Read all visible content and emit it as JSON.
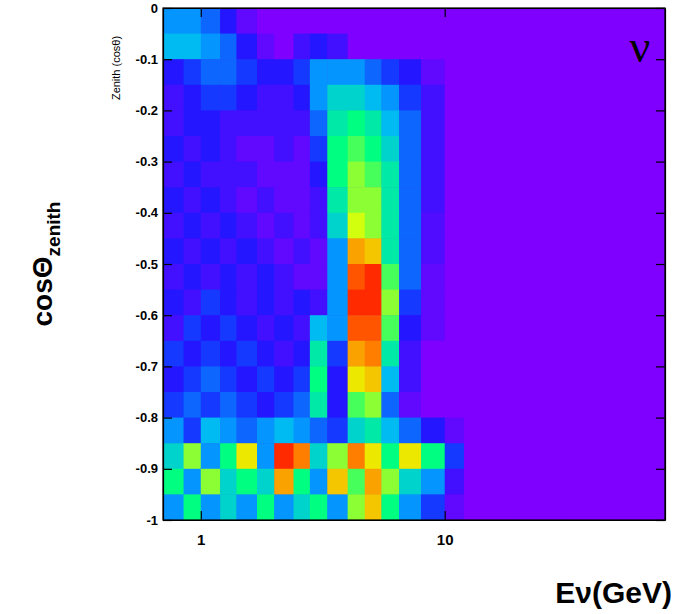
{
  "chart_data": {
    "type": "heatmap",
    "xlabel": "Eν(GeV)",
    "ylabel": {
      "text": "cosΘ",
      "subscript": "zenith"
    },
    "ylabel_inner": "Zenith (cosθ)",
    "annotations": [
      "ν"
    ],
    "log": "x",
    "xlim": [
      0.7,
      80
    ],
    "xticks": [
      1,
      10
    ],
    "ylim": [
      -1,
      0
    ],
    "yticks": [
      0,
      -0.1,
      -0.2,
      -0.3,
      -0.4,
      -0.5,
      -0.6,
      -0.7,
      -0.8,
      -0.9,
      -1
    ],
    "zlim": [
      0,
      1
    ],
    "x_bins": [
      0.7,
      0.85,
      1,
      1.2,
      1.4,
      1.7,
      2,
      2.4,
      2.8,
      3.3,
      4,
      4.7,
      5.5,
      6.5,
      8,
      10,
      12,
      15,
      20,
      30,
      80
    ],
    "y_bins": [
      0,
      -0.05,
      -0.1,
      -0.15,
      -0.2,
      -0.25,
      -0.3,
      -0.35,
      -0.4,
      -0.45,
      -0.5,
      -0.55,
      -0.6,
      -0.65,
      -0.7,
      -0.75,
      -0.8,
      -0.85,
      -0.9,
      -0.95,
      -1
    ],
    "cells": [
      [
        0.3,
        0.3,
        0.25,
        0.15,
        0.05,
        0,
        0,
        0,
        0,
        0,
        0,
        0,
        0,
        0,
        0,
        0,
        0,
        0,
        0,
        0
      ],
      [
        0.35,
        0.35,
        0.3,
        0.25,
        0.15,
        0.05,
        0,
        0.1,
        0.15,
        0.1,
        0,
        0,
        0,
        0,
        0,
        0,
        0,
        0,
        0,
        0
      ],
      [
        0.15,
        0.2,
        0.25,
        0.25,
        0.2,
        0.15,
        0.15,
        0.2,
        0.3,
        0.3,
        0.3,
        0.25,
        0.2,
        0.15,
        0.05,
        0,
        0,
        0,
        0,
        0
      ],
      [
        0.1,
        0.15,
        0.2,
        0.2,
        0.15,
        0.1,
        0.1,
        0.15,
        0.3,
        0.4,
        0.4,
        0.35,
        0.3,
        0.2,
        0.1,
        0,
        0,
        0,
        0,
        0
      ],
      [
        0.1,
        0.15,
        0.15,
        0.1,
        0.1,
        0.1,
        0.1,
        0.1,
        0.25,
        0.45,
        0.5,
        0.45,
        0.35,
        0.25,
        0.1,
        0,
        0,
        0,
        0,
        0
      ],
      [
        0.15,
        0.1,
        0.15,
        0.1,
        0.05,
        0.05,
        0.1,
        0.05,
        0.2,
        0.5,
        0.55,
        0.5,
        0.4,
        0.25,
        0.1,
        0,
        0,
        0,
        0,
        0
      ],
      [
        0.1,
        0.15,
        0.1,
        0.1,
        0.1,
        0.05,
        0.05,
        0.05,
        0.15,
        0.5,
        0.6,
        0.55,
        0.45,
        0.25,
        0.1,
        0,
        0,
        0,
        0,
        0
      ],
      [
        0.15,
        0.1,
        0.15,
        0.1,
        0.05,
        0.1,
        0.05,
        0.05,
        0.1,
        0.45,
        0.6,
        0.6,
        0.45,
        0.25,
        0.1,
        0,
        0,
        0,
        0,
        0
      ],
      [
        0.1,
        0.15,
        0.1,
        0.15,
        0.1,
        0.05,
        0.1,
        0.05,
        0.1,
        0.4,
        0.65,
        0.6,
        0.45,
        0.25,
        0.08,
        0,
        0,
        0,
        0,
        0
      ],
      [
        0.15,
        0.1,
        0.15,
        0.1,
        0.15,
        0.1,
        0.05,
        0.1,
        0.05,
        0.3,
        0.8,
        0.75,
        0.45,
        0.25,
        0.08,
        0,
        0,
        0,
        0,
        0
      ],
      [
        0.1,
        0.15,
        0.1,
        0.15,
        0.1,
        0.15,
        0.1,
        0.05,
        0.05,
        0.3,
        0.9,
        0.95,
        0.55,
        0.25,
        0.05,
        0,
        0,
        0,
        0,
        0
      ],
      [
        0.15,
        0.1,
        0.2,
        0.15,
        0.1,
        0.15,
        0.1,
        0.15,
        0.1,
        0.3,
        0.95,
        0.95,
        0.6,
        0.2,
        0.05,
        0,
        0,
        0,
        0,
        0
      ],
      [
        0.1,
        0.2,
        0.15,
        0.2,
        0.15,
        0.1,
        0.15,
        0.1,
        0.35,
        0.3,
        0.9,
        0.9,
        0.55,
        0.15,
        0.05,
        0,
        0,
        0,
        0,
        0
      ],
      [
        0.2,
        0.15,
        0.2,
        0.15,
        0.2,
        0.15,
        0.1,
        0.15,
        0.45,
        0.2,
        0.8,
        0.85,
        0.45,
        0.1,
        0,
        0,
        0,
        0,
        0,
        0
      ],
      [
        0.15,
        0.2,
        0.25,
        0.2,
        0.15,
        0.2,
        0.15,
        0.2,
        0.5,
        0.15,
        0.7,
        0.75,
        0.35,
        0.1,
        0,
        0,
        0,
        0,
        0,
        0
      ],
      [
        0.2,
        0.25,
        0.2,
        0.25,
        0.2,
        0.15,
        0.2,
        0.25,
        0.45,
        0.15,
        0.55,
        0.6,
        0.25,
        0.05,
        0,
        0,
        0,
        0,
        0,
        0
      ],
      [
        0.3,
        0.2,
        0.35,
        0.3,
        0.25,
        0.3,
        0.35,
        0.3,
        0.25,
        0.2,
        0.4,
        0.45,
        0.35,
        0.25,
        0.15,
        0.05,
        0,
        0,
        0,
        0
      ],
      [
        0.4,
        0.6,
        0.3,
        0.5,
        0.7,
        0.3,
        0.95,
        0.85,
        0.4,
        0.6,
        0.85,
        0.7,
        0.5,
        0.7,
        0.5,
        0.2,
        0,
        0,
        0,
        0
      ],
      [
        0.5,
        0.3,
        0.6,
        0.4,
        0.5,
        0.4,
        0.8,
        0.5,
        0.3,
        0.75,
        0.55,
        0.8,
        0.6,
        0.4,
        0.3,
        0.1,
        0,
        0,
        0,
        0
      ],
      [
        0.3,
        0.5,
        0.3,
        0.4,
        0.3,
        0.5,
        0.3,
        0.4,
        0.5,
        0.3,
        0.6,
        0.75,
        0.5,
        0.3,
        0.2,
        0.05,
        0,
        0,
        0,
        0
      ]
    ]
  }
}
